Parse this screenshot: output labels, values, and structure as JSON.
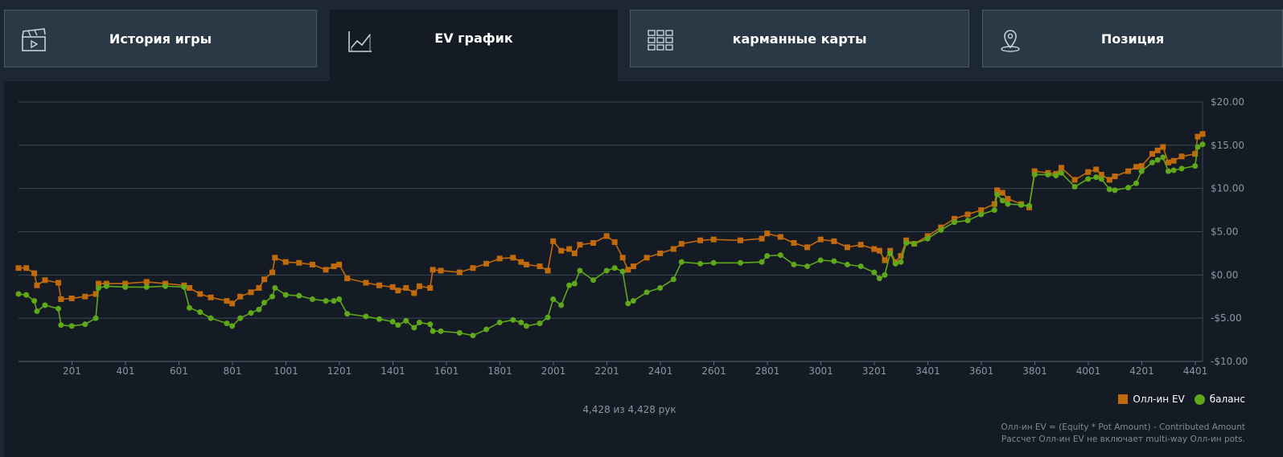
{
  "tabs": [
    {
      "label": "История игры",
      "icon": "clapperboard-icon",
      "active": false
    },
    {
      "label": "EV график",
      "icon": "line-chart-icon",
      "active": true
    },
    {
      "label": "карманные карты",
      "icon": "grid-icon",
      "active": false
    },
    {
      "label": "Позиция",
      "icon": "map-pin-icon",
      "active": false
    }
  ],
  "legend": {
    "allin_label": "Олл-ин EV",
    "balance_label": "баланс"
  },
  "count_text": "4,428 из 4,428 рук",
  "notes": {
    "line1": "Олл-ин EV = (Equity * Pot Amount) - Contributed Amount",
    "line2": "Рассчет Олл-ин EV не включает multi-way Олл-ин pots."
  },
  "colors": {
    "allin": "#c06a0c",
    "balance": "#5fa81a",
    "grid": "#3b4a58",
    "tick": "#8a96a3"
  },
  "chart_data": {
    "type": "line",
    "x_ticks": [
      201,
      401,
      601,
      801,
      1001,
      1201,
      1401,
      1601,
      1801,
      2001,
      2201,
      2401,
      2601,
      2801,
      3001,
      3201,
      3401,
      3601,
      3801,
      4001,
      4201,
      4401
    ],
    "y_ticks": [
      20,
      15,
      10,
      5,
      0,
      -5,
      -10
    ],
    "y_tick_labels": [
      "$20.00",
      "$15.00",
      "$10.00",
      "$5.00",
      "$0.00",
      "-$5.00",
      "-$10.00"
    ],
    "xlim": [
      1,
      4428
    ],
    "ylim": [
      -10,
      20
    ],
    "series": [
      {
        "name": "Олл-ин EV",
        "x": [
          1,
          30,
          60,
          70,
          100,
          150,
          160,
          200,
          250,
          290,
          300,
          330,
          400,
          480,
          550,
          620,
          640,
          680,
          720,
          780,
          800,
          830,
          870,
          900,
          920,
          950,
          960,
          1000,
          1050,
          1100,
          1150,
          1180,
          1200,
          1230,
          1300,
          1350,
          1400,
          1420,
          1450,
          1480,
          1500,
          1540,
          1550,
          1580,
          1650,
          1700,
          1750,
          1800,
          1850,
          1880,
          1900,
          1950,
          1980,
          2000,
          2030,
          2060,
          2080,
          2100,
          2150,
          2200,
          2230,
          2260,
          2280,
          2300,
          2350,
          2400,
          2450,
          2480,
          2550,
          2600,
          2700,
          2780,
          2800,
          2850,
          2900,
          2950,
          3000,
          3050,
          3100,
          3150,
          3200,
          3220,
          3240,
          3260,
          3280,
          3300,
          3320,
          3350,
          3400,
          3450,
          3500,
          3550,
          3600,
          3650,
          3660,
          3680,
          3700,
          3750,
          3780,
          3800,
          3850,
          3880,
          3900,
          3950,
          4000,
          4030,
          4050,
          4080,
          4100,
          4150,
          4180,
          4200,
          4240,
          4260,
          4280,
          4300,
          4320,
          4350,
          4400,
          4410,
          4428
        ],
        "y": [
          0.8,
          0.8,
          0.2,
          -1.2,
          -0.6,
          -0.9,
          -2.8,
          -2.7,
          -2.5,
          -2.2,
          -1.0,
          -1.0,
          -1.0,
          -0.8,
          -1.0,
          -1.2,
          -1.5,
          -2.2,
          -2.6,
          -3.0,
          -3.3,
          -2.5,
          -2.0,
          -1.5,
          -0.5,
          0.3,
          2.0,
          1.5,
          1.4,
          1.2,
          0.6,
          1.0,
          1.2,
          -0.4,
          -0.9,
          -1.2,
          -1.4,
          -1.8,
          -1.5,
          -2.1,
          -1.3,
          -1.5,
          0.6,
          0.5,
          0.3,
          0.8,
          1.3,
          1.9,
          2.0,
          1.5,
          1.2,
          1.0,
          0.5,
          3.9,
          2.8,
          3.0,
          2.5,
          3.5,
          3.7,
          4.5,
          3.8,
          2.0,
          0.6,
          1.0,
          2.0,
          2.5,
          3.0,
          3.6,
          4.0,
          4.1,
          4.0,
          4.2,
          4.8,
          4.4,
          3.7,
          3.2,
          4.1,
          3.9,
          3.2,
          3.5,
          3.0,
          2.8,
          1.7,
          2.8,
          1.5,
          2.2,
          4.0,
          3.6,
          4.5,
          5.5,
          6.5,
          7.0,
          7.5,
          8.2,
          9.8,
          9.5,
          8.8,
          8.2,
          7.8,
          12.0,
          11.8,
          11.7,
          12.4,
          11.0,
          11.9,
          12.2,
          11.6,
          11.0,
          11.4,
          12.0,
          12.5,
          12.6,
          14.0,
          14.4,
          14.8,
          13.0,
          13.2,
          13.7,
          14.0,
          16.0,
          16.3
        ]
      },
      {
        "name": "баланс",
        "x": [
          1,
          30,
          60,
          70,
          100,
          150,
          160,
          200,
          250,
          290,
          300,
          330,
          400,
          480,
          550,
          620,
          640,
          680,
          720,
          780,
          800,
          830,
          870,
          900,
          920,
          950,
          960,
          1000,
          1050,
          1100,
          1150,
          1180,
          1200,
          1230,
          1300,
          1350,
          1400,
          1420,
          1450,
          1480,
          1500,
          1540,
          1550,
          1580,
          1650,
          1700,
          1750,
          1800,
          1850,
          1880,
          1900,
          1950,
          1980,
          2000,
          2030,
          2060,
          2080,
          2100,
          2150,
          2200,
          2230,
          2260,
          2280,
          2300,
          2350,
          2400,
          2450,
          2480,
          2550,
          2600,
          2700,
          2780,
          2800,
          2850,
          2900,
          2950,
          3000,
          3050,
          3100,
          3150,
          3200,
          3220,
          3240,
          3260,
          3280,
          3300,
          3320,
          3350,
          3400,
          3450,
          3500,
          3550,
          3600,
          3650,
          3660,
          3680,
          3700,
          3750,
          3780,
          3800,
          3850,
          3880,
          3900,
          3950,
          4000,
          4030,
          4050,
          4080,
          4100,
          4150,
          4180,
          4200,
          4240,
          4260,
          4280,
          4300,
          4320,
          4350,
          4400,
          4410,
          4428
        ],
        "y": [
          -2.2,
          -2.3,
          -3.0,
          -4.2,
          -3.5,
          -3.9,
          -5.8,
          -5.9,
          -5.7,
          -5.0,
          -1.5,
          -1.3,
          -1.4,
          -1.4,
          -1.3,
          -1.4,
          -3.8,
          -4.3,
          -5.0,
          -5.6,
          -5.9,
          -5.0,
          -4.4,
          -4.0,
          -3.2,
          -2.5,
          -1.5,
          -2.3,
          -2.4,
          -2.8,
          -3.0,
          -3.0,
          -2.8,
          -4.5,
          -4.8,
          -5.1,
          -5.4,
          -5.8,
          -5.3,
          -6.1,
          -5.5,
          -5.7,
          -6.5,
          -6.5,
          -6.7,
          -7.0,
          -6.3,
          -5.5,
          -5.2,
          -5.5,
          -5.9,
          -5.6,
          -4.9,
          -2.8,
          -3.5,
          -1.2,
          -1.0,
          0.5,
          -0.6,
          0.5,
          0.8,
          0.4,
          -3.3,
          -3.0,
          -2.0,
          -1.5,
          -0.5,
          1.5,
          1.3,
          1.4,
          1.4,
          1.5,
          2.2,
          2.3,
          1.2,
          1.0,
          1.7,
          1.6,
          1.2,
          1.0,
          0.3,
          -0.4,
          0.0,
          2.5,
          1.3,
          1.5,
          3.7,
          3.6,
          4.2,
          5.2,
          6.1,
          6.3,
          7.0,
          7.5,
          9.3,
          8.6,
          8.2,
          8.1,
          8.0,
          11.6,
          11.6,
          11.5,
          11.8,
          10.2,
          11.1,
          11.3,
          11.1,
          9.9,
          9.8,
          10.1,
          10.6,
          12.0,
          13.0,
          13.3,
          13.6,
          12.0,
          12.1,
          12.3,
          12.6,
          14.8,
          15.1
        ]
      }
    ]
  }
}
